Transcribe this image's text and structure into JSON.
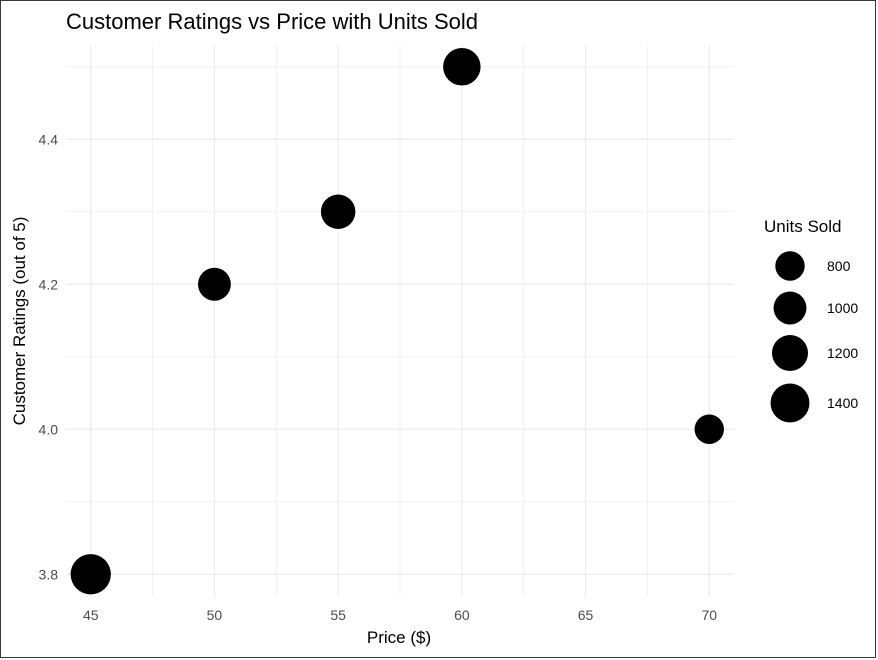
{
  "chart_data": {
    "type": "scatter",
    "title": "Customer Ratings vs Price with Units Sold",
    "xlabel": "Price ($)",
    "ylabel": "Customer Ratings (out of 5)",
    "xlim": [
      44,
      71
    ],
    "ylim": [
      3.77,
      4.53
    ],
    "x_ticks": [
      45,
      50,
      55,
      60,
      65,
      70
    ],
    "y_ticks": [
      3.8,
      4.0,
      4.2,
      4.4
    ],
    "grid": true,
    "point_color": "#000000",
    "points": [
      {
        "x": 45,
        "y": 3.8,
        "size": 1500
      },
      {
        "x": 50,
        "y": 4.2,
        "size": 1000
      },
      {
        "x": 55,
        "y": 4.3,
        "size": 1100
      },
      {
        "x": 60,
        "y": 4.5,
        "size": 1300
      },
      {
        "x": 70,
        "y": 4.0,
        "size": 800
      }
    ],
    "legend": {
      "title": "Units Sold",
      "position": "right",
      "entries": [
        {
          "label": "800",
          "size": 800
        },
        {
          "label": "1000",
          "size": 1000
        },
        {
          "label": "1200",
          "size": 1200
        },
        {
          "label": "1400",
          "size": 1400
        }
      ]
    }
  }
}
